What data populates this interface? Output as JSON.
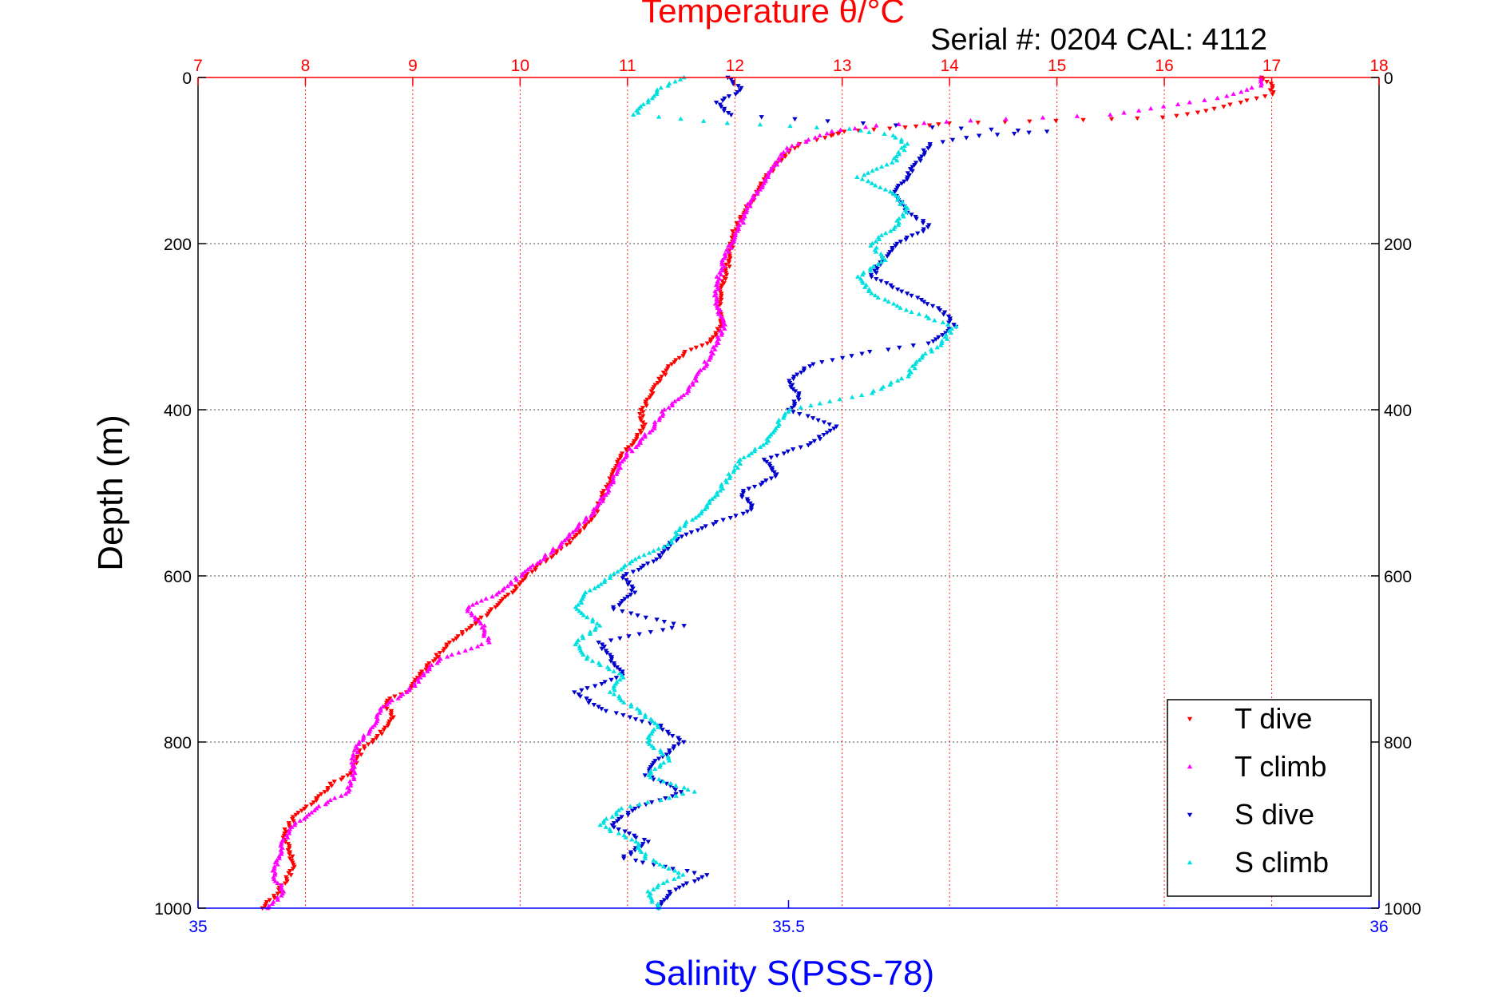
{
  "chart_data": {
    "type": "scatter",
    "title": "Temperature θ/°C",
    "subtitle": "Serial #: 0204  CAL: 4112",
    "xlabel": "Salinity S(PSS-78)",
    "ylabel": "Depth (m)",
    "top_axis": {
      "label": "Temperature θ/°C",
      "range": [
        7,
        18
      ],
      "ticks": [
        "7",
        "8",
        "9",
        "10",
        "11",
        "12",
        "13",
        "14",
        "15",
        "16",
        "17",
        "18"
      ]
    },
    "bottom_axis": {
      "label": "Salinity S(PSS-78)",
      "range": [
        35,
        36
      ],
      "ticks": [
        "35",
        "35.5",
        "36"
      ]
    },
    "y_axis": {
      "label": "Depth (m)",
      "range": [
        0,
        1000
      ],
      "reversed": true,
      "ticks": [
        "0",
        "200",
        "400",
        "600",
        "800",
        "1000"
      ]
    },
    "grid": true,
    "legend_position": "bottom-right",
    "colors": {
      "t_dive": "#ff0000",
      "t_climb": "#ff00ff",
      "s_dive": "#0000cc",
      "s_climb": "#00e0e0",
      "temp_axis": "#ff0000",
      "sal_axis": "#0000ff"
    },
    "series": [
      {
        "name": "T dive",
        "axis": "temperature",
        "marker": "triangle-down",
        "color": "#ff0000",
        "points": [
          [
            16.9,
            0
          ],
          [
            17.0,
            10
          ],
          [
            17.0,
            20
          ],
          [
            16.7,
            30
          ],
          [
            16.4,
            40
          ],
          [
            16.0,
            48
          ],
          [
            15.0,
            52
          ],
          [
            14.0,
            55
          ],
          [
            13.6,
            60
          ],
          [
            13.0,
            65
          ],
          [
            12.9,
            70
          ],
          [
            12.6,
            80
          ],
          [
            12.5,
            90
          ],
          [
            12.35,
            110
          ],
          [
            12.25,
            130
          ],
          [
            12.15,
            150
          ],
          [
            12.05,
            170
          ],
          [
            11.98,
            190
          ],
          [
            11.95,
            210
          ],
          [
            11.93,
            230
          ],
          [
            11.88,
            250
          ],
          [
            11.85,
            270
          ],
          [
            11.87,
            290
          ],
          [
            11.85,
            305
          ],
          [
            11.75,
            320
          ],
          [
            11.55,
            330
          ],
          [
            11.4,
            345
          ],
          [
            11.3,
            365
          ],
          [
            11.2,
            385
          ],
          [
            11.12,
            405
          ],
          [
            11.15,
            420
          ],
          [
            11.05,
            440
          ],
          [
            10.92,
            460
          ],
          [
            10.85,
            480
          ],
          [
            10.78,
            500
          ],
          [
            10.72,
            520
          ],
          [
            10.6,
            540
          ],
          [
            10.45,
            560
          ],
          [
            10.25,
            580
          ],
          [
            10.05,
            600
          ],
          [
            9.92,
            620
          ],
          [
            9.75,
            640
          ],
          [
            9.55,
            660
          ],
          [
            9.35,
            680
          ],
          [
            9.2,
            700
          ],
          [
            9.05,
            720
          ],
          [
            8.95,
            740
          ],
          [
            8.75,
            750
          ],
          [
            8.8,
            770
          ],
          [
            8.7,
            790
          ],
          [
            8.52,
            810
          ],
          [
            8.4,
            840
          ],
          [
            8.25,
            850
          ],
          [
            8.1,
            870
          ],
          [
            7.9,
            890
          ],
          [
            7.8,
            910
          ],
          [
            7.85,
            930
          ],
          [
            7.9,
            950
          ],
          [
            7.85,
            960
          ],
          [
            7.75,
            980
          ],
          [
            7.6,
            1000
          ]
        ]
      },
      {
        "name": "T climb",
        "axis": "temperature",
        "marker": "triangle-up",
        "color": "#ff00ff",
        "points": [
          [
            16.9,
            0
          ],
          [
            16.9,
            10
          ],
          [
            16.5,
            25
          ],
          [
            15.5,
            45
          ],
          [
            14.2,
            52
          ],
          [
            13.3,
            58
          ],
          [
            12.9,
            65
          ],
          [
            12.7,
            75
          ],
          [
            12.5,
            85
          ],
          [
            12.4,
            100
          ],
          [
            12.3,
            120
          ],
          [
            12.2,
            140
          ],
          [
            12.1,
            160
          ],
          [
            12.05,
            180
          ],
          [
            11.97,
            200
          ],
          [
            11.9,
            220
          ],
          [
            11.85,
            240
          ],
          [
            11.82,
            260
          ],
          [
            11.85,
            280
          ],
          [
            11.9,
            300
          ],
          [
            11.83,
            320
          ],
          [
            11.75,
            340
          ],
          [
            11.65,
            360
          ],
          [
            11.55,
            380
          ],
          [
            11.35,
            400
          ],
          [
            11.25,
            420
          ],
          [
            11.1,
            440
          ],
          [
            10.95,
            460
          ],
          [
            10.88,
            480
          ],
          [
            10.8,
            500
          ],
          [
            10.7,
            520
          ],
          [
            10.55,
            540
          ],
          [
            10.4,
            560
          ],
          [
            10.2,
            580
          ],
          [
            10.0,
            600
          ],
          [
            9.8,
            620
          ],
          [
            9.5,
            640
          ],
          [
            9.65,
            660
          ],
          [
            9.7,
            680
          ],
          [
            9.25,
            700
          ],
          [
            9.1,
            720
          ],
          [
            8.95,
            740
          ],
          [
            8.7,
            760
          ],
          [
            8.65,
            780
          ],
          [
            8.5,
            800
          ],
          [
            8.45,
            820
          ],
          [
            8.45,
            840
          ],
          [
            8.4,
            860
          ],
          [
            8.1,
            880
          ],
          [
            7.9,
            900
          ],
          [
            7.8,
            920
          ],
          [
            7.75,
            940
          ],
          [
            7.7,
            960
          ],
          [
            7.8,
            980
          ],
          [
            7.65,
            1000
          ]
        ]
      },
      {
        "name": "S dive",
        "axis": "salinity",
        "marker": "triangle-down",
        "color": "#0000cc",
        "points": [
          [
            35.45,
            0
          ],
          [
            35.46,
            15
          ],
          [
            35.44,
            30
          ],
          [
            35.45,
            45
          ],
          [
            35.62,
            60
          ],
          [
            35.72,
            65
          ],
          [
            35.66,
            70
          ],
          [
            35.62,
            80
          ],
          [
            35.61,
            100
          ],
          [
            35.6,
            120
          ],
          [
            35.59,
            140
          ],
          [
            35.6,
            160
          ],
          [
            35.62,
            180
          ],
          [
            35.59,
            200
          ],
          [
            35.58,
            220
          ],
          [
            35.57,
            240
          ],
          [
            35.6,
            260
          ],
          [
            35.63,
            280
          ],
          [
            35.64,
            300
          ],
          [
            35.62,
            320
          ],
          [
            35.57,
            330
          ],
          [
            35.52,
            345
          ],
          [
            35.5,
            365
          ],
          [
            35.51,
            385
          ],
          [
            35.5,
            400
          ],
          [
            35.54,
            420
          ],
          [
            35.52,
            440
          ],
          [
            35.48,
            460
          ],
          [
            35.49,
            480
          ],
          [
            35.46,
            500
          ],
          [
            35.47,
            520
          ],
          [
            35.43,
            540
          ],
          [
            35.4,
            560
          ],
          [
            35.39,
            580
          ],
          [
            35.36,
            600
          ],
          [
            35.37,
            620
          ],
          [
            35.35,
            640
          ],
          [
            35.41,
            660
          ],
          [
            35.34,
            680
          ],
          [
            35.35,
            700
          ],
          [
            35.36,
            720
          ],
          [
            35.32,
            740
          ],
          [
            35.34,
            760
          ],
          [
            35.39,
            780
          ],
          [
            35.41,
            800
          ],
          [
            35.39,
            820
          ],
          [
            35.38,
            840
          ],
          [
            35.41,
            860
          ],
          [
            35.37,
            880
          ],
          [
            35.35,
            900
          ],
          [
            35.38,
            920
          ],
          [
            35.36,
            940
          ],
          [
            35.43,
            960
          ],
          [
            35.4,
            980
          ],
          [
            35.39,
            1000
          ]
        ]
      },
      {
        "name": "S climb",
        "axis": "salinity",
        "marker": "triangle-up",
        "color": "#00e0e0",
        "points": [
          [
            35.41,
            0
          ],
          [
            35.39,
            15
          ],
          [
            35.38,
            30
          ],
          [
            35.37,
            45
          ],
          [
            35.45,
            55
          ],
          [
            35.55,
            62
          ],
          [
            35.59,
            70
          ],
          [
            35.6,
            80
          ],
          [
            35.59,
            100
          ],
          [
            35.56,
            120
          ],
          [
            35.59,
            140
          ],
          [
            35.6,
            160
          ],
          [
            35.59,
            180
          ],
          [
            35.57,
            200
          ],
          [
            35.58,
            220
          ],
          [
            35.56,
            240
          ],
          [
            35.57,
            260
          ],
          [
            35.6,
            280
          ],
          [
            35.64,
            300
          ],
          [
            35.63,
            320
          ],
          [
            35.61,
            340
          ],
          [
            35.6,
            360
          ],
          [
            35.57,
            380
          ],
          [
            35.5,
            400
          ],
          [
            35.49,
            420
          ],
          [
            35.48,
            440
          ],
          [
            35.46,
            460
          ],
          [
            35.45,
            480
          ],
          [
            35.44,
            500
          ],
          [
            35.43,
            520
          ],
          [
            35.41,
            540
          ],
          [
            35.4,
            560
          ],
          [
            35.37,
            580
          ],
          [
            35.35,
            600
          ],
          [
            35.33,
            620
          ],
          [
            35.32,
            640
          ],
          [
            35.34,
            660
          ],
          [
            35.32,
            680
          ],
          [
            35.33,
            700
          ],
          [
            35.36,
            720
          ],
          [
            35.35,
            740
          ],
          [
            35.37,
            760
          ],
          [
            35.39,
            780
          ],
          [
            35.38,
            800
          ],
          [
            35.4,
            820
          ],
          [
            35.38,
            840
          ],
          [
            35.42,
            860
          ],
          [
            35.36,
            880
          ],
          [
            35.34,
            900
          ],
          [
            35.37,
            920
          ],
          [
            35.38,
            940
          ],
          [
            35.41,
            960
          ],
          [
            35.38,
            980
          ],
          [
            35.39,
            1000
          ]
        ]
      }
    ]
  }
}
